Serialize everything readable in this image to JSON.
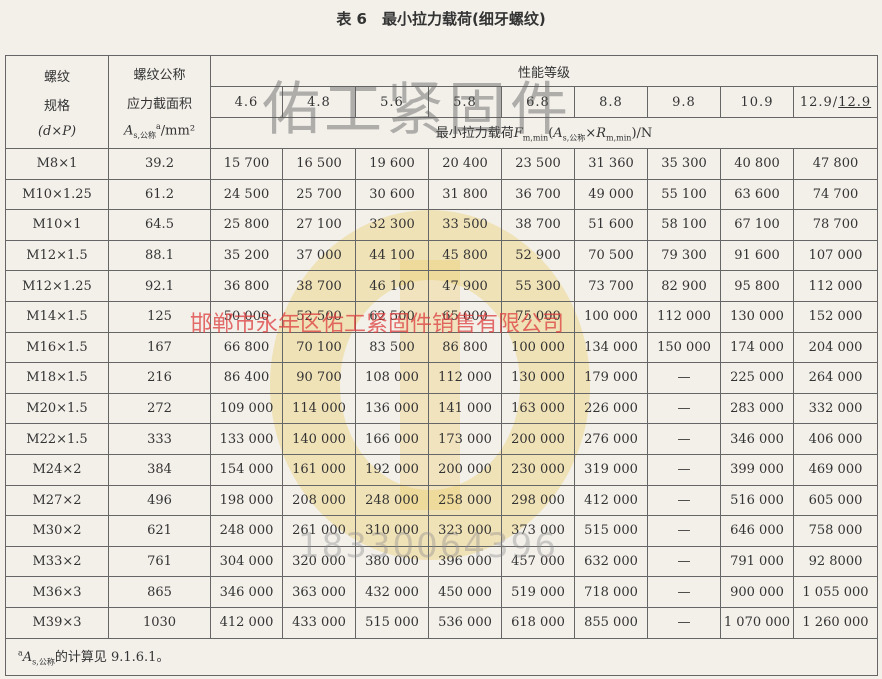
{
  "title": "表 6　最小拉力载荷(细牙螺纹)",
  "header": {
    "thread": [
      "螺纹",
      "规格",
      "(d×P)"
    ],
    "area": [
      "螺纹公称",
      "应力截面积"
    ],
    "area_unit": {
      "symbol": "A",
      "sub": "s,公称",
      "sup": "a",
      "unit": "/mm²"
    },
    "group": "性能等级",
    "grades": [
      "4.6",
      "4.8",
      "5.6",
      "5.8",
      "6.8",
      "8.8",
      "9.8",
      "10.9"
    ],
    "grade_last": {
      "a": "12.9",
      "sep": "/",
      "b": "12.9"
    },
    "load": {
      "label": "最小拉力载荷",
      "symbol": "F",
      "sub": "m,min",
      "open": "(",
      "a": "A",
      "a_sub": "s,公称",
      "times": "×",
      "r": "R",
      "r_sub": "m,min",
      "close": ")/N"
    }
  },
  "rows": [
    [
      "M8×1",
      "39.2",
      "15 700",
      "16 500",
      "19 600",
      "20 400",
      "23 500",
      "31 360",
      "35 300",
      "40 800",
      "47 800"
    ],
    [
      "M10×1.25",
      "61.2",
      "24 500",
      "25 700",
      "30 600",
      "31 800",
      "36 700",
      "49 000",
      "55 100",
      "63 600",
      "74 700"
    ],
    [
      "M10×1",
      "64.5",
      "25 800",
      "27 100",
      "32 300",
      "33 500",
      "38 700",
      "51 600",
      "58 100",
      "67 100",
      "78 700"
    ],
    [
      "M12×1.5",
      "88.1",
      "35 200",
      "37 000",
      "44 100",
      "45 800",
      "52 900",
      "70 500",
      "79 300",
      "91 600",
      "107 000"
    ],
    [
      "M12×1.25",
      "92.1",
      "36 800",
      "38 700",
      "46 100",
      "47 900",
      "55 300",
      "73 700",
      "82 900",
      "95 800",
      "112 000"
    ],
    [
      "M14×1.5",
      "125",
      "50 000",
      "52 500",
      "62 500",
      "65 000",
      "75 000",
      "100 000",
      "112 000",
      "130 000",
      "152 000"
    ],
    [
      "M16×1.5",
      "167",
      "66 800",
      "70 100",
      "83 500",
      "86 800",
      "100 000",
      "134 000",
      "150 000",
      "174 000",
      "204 000"
    ],
    [
      "M18×1.5",
      "216",
      "86 400",
      "90 700",
      "108 000",
      "112 000",
      "130 000",
      "179 000",
      "—",
      "225 000",
      "264 000"
    ],
    [
      "M20×1.5",
      "272",
      "109 000",
      "114 000",
      "136 000",
      "141 000",
      "163 000",
      "226 000",
      "—",
      "283 000",
      "332 000"
    ],
    [
      "M22×1.5",
      "333",
      "133 000",
      "140 000",
      "166 000",
      "173 000",
      "200 000",
      "276 000",
      "—",
      "346 000",
      "406 000"
    ],
    [
      "M24×2",
      "384",
      "154 000",
      "161 000",
      "192 000",
      "200 000",
      "230 000",
      "319 000",
      "—",
      "399 000",
      "469 000"
    ],
    [
      "M27×2",
      "496",
      "198 000",
      "208 000",
      "248 000",
      "258 000",
      "298 000",
      "412 000",
      "—",
      "516 000",
      "605 000"
    ],
    [
      "M30×2",
      "621",
      "248 000",
      "261 000",
      "310 000",
      "323 000",
      "373 000",
      "515 000",
      "—",
      "646 000",
      "758 000"
    ],
    [
      "M33×2",
      "761",
      "304 000",
      "320 000",
      "380 000",
      "396 000",
      "457 000",
      "632 000",
      "—",
      "791 000",
      "92 8000"
    ],
    [
      "M36×3",
      "865",
      "346 000",
      "363 000",
      "432 000",
      "450 000",
      "519 000",
      "718 000",
      "—",
      "900 000",
      "1 055 000"
    ],
    [
      "M39×3",
      "1030",
      "412 000",
      "433 000",
      "515 000",
      "536 000",
      "618 000",
      "855 000",
      "—",
      "1 070 000",
      "1 260 000"
    ]
  ],
  "footnote": {
    "sup": "a",
    "symbol": "A",
    "sub": "s,公称",
    "text": "的计算见 9.1.6.1。"
  },
  "watermarks": [
    "佑工紧固件",
    "邯郸市永年区佑工紧固件销售有限公司",
    "18330064396"
  ]
}
